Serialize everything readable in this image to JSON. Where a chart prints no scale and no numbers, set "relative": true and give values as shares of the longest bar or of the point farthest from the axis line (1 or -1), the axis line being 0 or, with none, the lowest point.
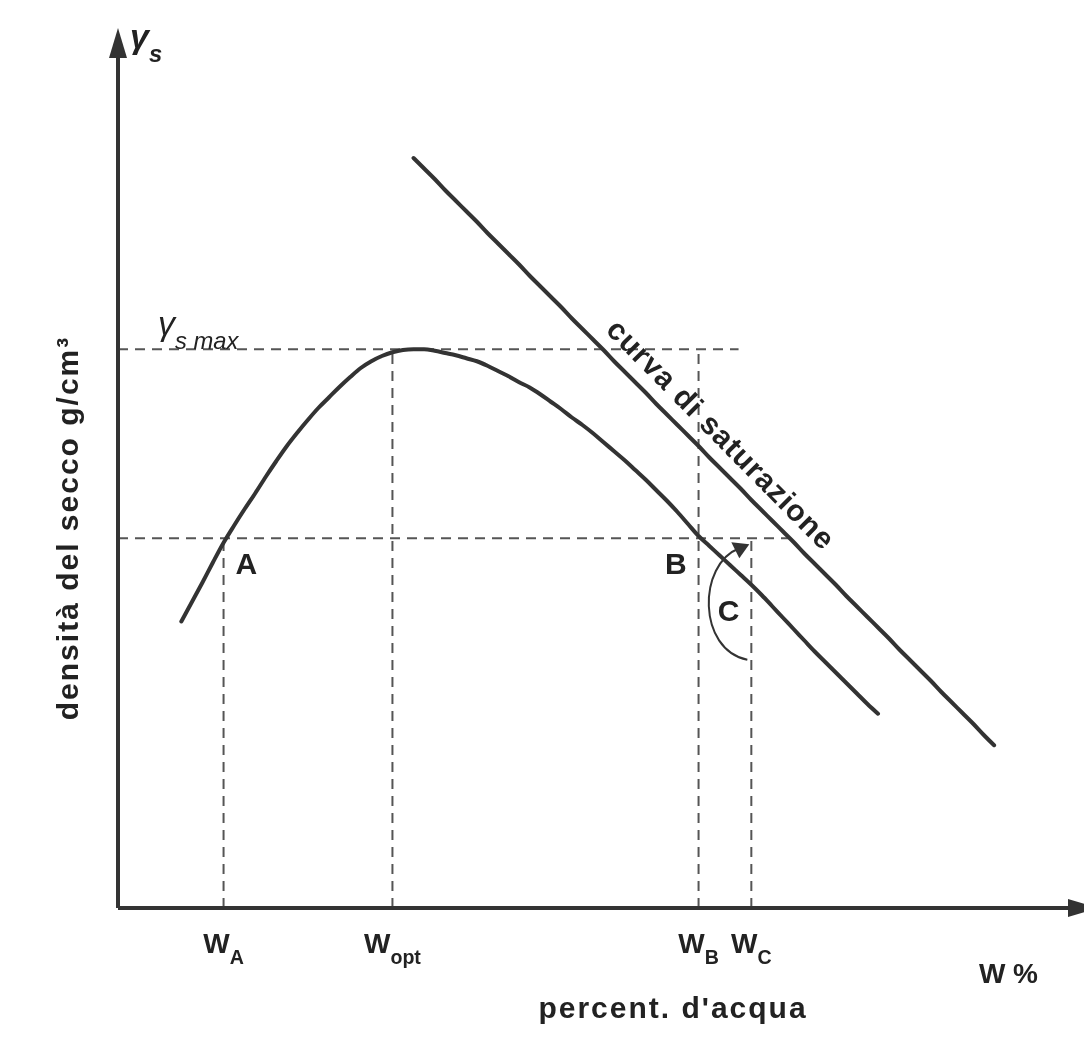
{
  "chart_data": {
    "type": "line",
    "relative": true,
    "ylabel": "densità del secco   g/cm³",
    "xlabel": "percent. d'acqua",
    "categories": [
      null,
      null,
      null,
      null,
      "W$_{A}$",
      null,
      null,
      null,
      null,
      null,
      null,
      null,
      null,
      null,
      null,
      null,
      null,
      null,
      null,
      null,
      "W$_{opt}$",
      null,
      null,
      null,
      null,
      null,
      null,
      null,
      null,
      null,
      null,
      null,
      null,
      null,
      null,
      null,
      null,
      null,
      null,
      null,
      null,
      null,
      null,
      null,
      null,
      null,
      null,
      null,
      null,
      "W$_{B}$",
      null,
      null,
      null,
      null,
      "W$_{C}$",
      null,
      null,
      null,
      null,
      null,
      null,
      null,
      null,
      null,
      null,
      null,
      null,
      null,
      null,
      null,
      null,
      null,
      null,
      null,
      null,
      null,
      null,
      null
    ],
    "tick_labels": "x",
    "grid": false,
    "legend": false,
    "marker": "none",
    "series": [
      {
        "color": "#333333",
        "line_style": "solid",
        "values": [
          0.382,
          0.408,
          0.434,
          0.461,
          0.487,
          0.51,
          0.532,
          0.553,
          0.575,
          0.596,
          0.616,
          0.634,
          0.651,
          0.667,
          0.681,
          0.695,
          0.708,
          0.72,
          0.729,
          0.736,
          0.741,
          0.744,
          0.745,
          0.745,
          0.743,
          0.74,
          0.737,
          0.733,
          0.729,
          0.723,
          0.716,
          0.709,
          0.701,
          0.694,
          0.685,
          0.675,
          0.665,
          0.654,
          0.644,
          0.633,
          0.621,
          0.609,
          0.597,
          0.584,
          0.571,
          0.557,
          0.543,
          0.528,
          0.512,
          0.496,
          0.483,
          0.47,
          0.457,
          0.444,
          0.431,
          0.417,
          0.402,
          0.387,
          0.372,
          0.357,
          0.342,
          0.328,
          0.314,
          0.3,
          0.286,
          0.272,
          0.259,
          null,
          null,
          null,
          null,
          null,
          null,
          null,
          null,
          null,
          null,
          null
        ]
      },
      {
        "name": "curva di saturazione",
        "color": "#333333",
        "line_style": "solid",
        "values": [
          null,
          null,
          null,
          null,
          null,
          null,
          null,
          null,
          null,
          null,
          null,
          null,
          null,
          null,
          null,
          null,
          null,
          null,
          null,
          null,
          null,
          null,
          1,
          0.986,
          0.972,
          0.957,
          0.943,
          0.929,
          0.915,
          0.9,
          0.886,
          0.872,
          0.858,
          0.843,
          0.829,
          0.815,
          0.801,
          0.786,
          0.772,
          0.758,
          0.744,
          0.729,
          0.715,
          0.701,
          0.687,
          0.672,
          0.658,
          0.644,
          0.63,
          0.616,
          0.601,
          0.587,
          0.573,
          0.559,
          0.544,
          0.53,
          0.516,
          0.502,
          0.488,
          0.473,
          0.459,
          0.445,
          0.431,
          0.416,
          0.402,
          0.388,
          0.374,
          0.36,
          0.345,
          0.331,
          0.317,
          0.303,
          0.288,
          0.274,
          0.26,
          0.246,
          0.231,
          0.217
        ]
      }
    ],
    "ref_lines": [
      {
        "axis": "y",
        "value": 0.745,
        "label": "γ$_{s max}$",
        "line_style": "dashed",
        "color": "#555555"
      },
      {
        "axis": "y",
        "value": 0.493,
        "label": null,
        "line_style": "dashed",
        "color": "#555555"
      },
      {
        "axis": "x",
        "value": "W$_{A}$",
        "label": null,
        "line_style": "dashed",
        "color": "#555555"
      },
      {
        "axis": "x",
        "value": "W$_{opt}$",
        "label": null,
        "line_style": "dashed",
        "color": "#555555"
      },
      {
        "axis": "x",
        "value": "W$_{B}$",
        "label": null,
        "line_style": "dashed",
        "color": "#555555"
      },
      {
        "axis": "x",
        "value": "W$_{C}$",
        "label": null,
        "line_style": "dashed",
        "color": "#555555"
      }
    ],
    "annotations": [
      {
        "text": "A",
        "x": "W$_{A}$",
        "y": 0.493
      },
      {
        "text": "B",
        "x": "W$_{B}$",
        "y": 0.493
      },
      {
        "text": "C",
        "x": "W$_{C}$",
        "y": 0.431
      },
      "γ$_{s}$",
      "W %"
    ]
  }
}
